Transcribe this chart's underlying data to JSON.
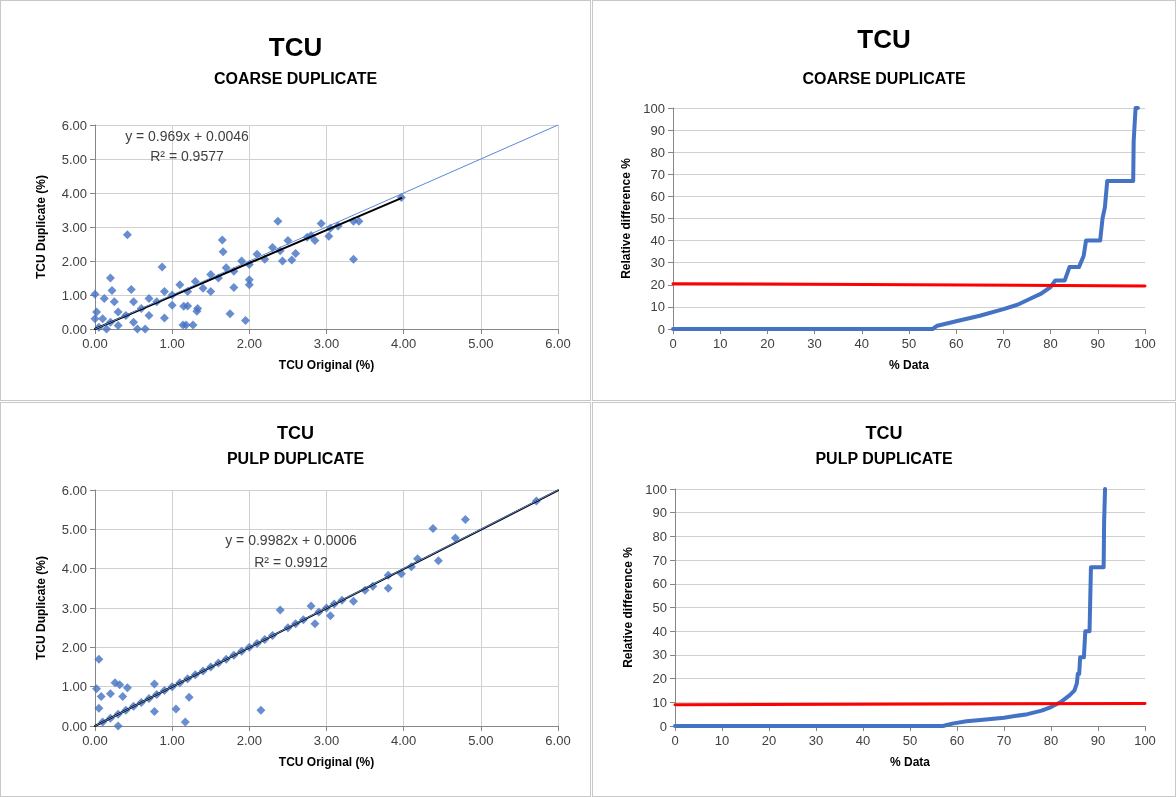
{
  "chart_data": [
    {
      "type": "scatter",
      "title": "TCU",
      "subtitle": "COARSE DUPLICATE",
      "xlabel": "TCU Original (%)",
      "ylabel": "TCU Duplicate (%)",
      "annotations": [
        "y = 0.969x + 0.0046",
        "R² = 0.9577"
      ],
      "xlim": [
        0,
        6
      ],
      "ylim": [
        0,
        6
      ],
      "grid": true,
      "marker": "diamond",
      "xticks": [
        {
          "value": 0,
          "label": "0.00"
        },
        {
          "value": 1,
          "label": "1.00"
        },
        {
          "value": 2,
          "label": "2.00"
        },
        {
          "value": 3,
          "label": "3.00"
        },
        {
          "value": 4,
          "label": "4.00"
        },
        {
          "value": 5,
          "label": "5.00"
        },
        {
          "value": 6,
          "label": "6.00"
        }
      ],
      "yticks": [
        {
          "value": 0,
          "label": "0.00"
        },
        {
          "value": 1,
          "label": "1.00"
        },
        {
          "value": 2,
          "label": "2.00"
        },
        {
          "value": 3,
          "label": "3.00"
        },
        {
          "value": 4,
          "label": "4.00"
        },
        {
          "value": 5,
          "label": "5.00"
        },
        {
          "value": 6,
          "label": "6.00"
        }
      ],
      "series": [
        {
          "type": "scatter",
          "color": "#4472c4",
          "x": [
            0.42,
            0.0,
            0.12,
            0.2,
            0.22,
            0.47,
            0.87,
            0.9,
            1.14,
            1.18,
            1.27,
            1.15,
            1.2,
            1.32,
            1.33,
            1.65,
            1.66,
            1.75,
            1.8,
            1.95,
            2.0,
            2.0,
            2.37,
            2.43,
            2.55,
            2.6,
            2.93,
            3.03,
            3.05,
            3.15,
            3.35,
            3.35,
            3.42,
            3.97,
            2.75,
            2.85,
            2.8,
            2.5,
            0.05,
            0.1,
            0.15,
            0.2,
            0.3,
            0.3,
            0.4,
            0.5,
            0.5,
            0.6,
            0.7,
            0.7,
            0.8,
            0.9,
            1.0,
            1.0,
            1.1,
            1.2,
            1.3,
            1.4,
            1.5,
            1.5,
            1.6,
            1.7,
            1.8,
            1.9,
            2.0,
            2.1,
            2.2,
            2.3,
            2.4,
            0.02,
            0.0,
            0.25,
            0.65,
            0.55
          ],
          "values": [
            2.77,
            1.02,
            0.9,
            1.5,
            1.13,
            1.16,
            1.82,
            0.32,
            0.12,
            0.12,
            0.12,
            0.67,
            0.68,
            0.52,
            0.6,
            2.62,
            2.27,
            0.45,
            1.22,
            0.25,
            1.3,
            1.45,
            3.17,
            2.0,
            2.03,
            2.22,
            3.1,
            2.73,
            2.96,
            3.03,
            2.05,
            3.17,
            3.17,
            3.87,
            2.7,
            2.6,
            2.75,
            2.6,
            0.05,
            0.3,
            0.0,
            0.2,
            0.5,
            0.1,
            0.4,
            0.8,
            0.2,
            0.6,
            0.9,
            0.4,
            0.8,
            1.1,
            1.0,
            0.7,
            1.3,
            1.1,
            1.4,
            1.2,
            1.6,
            1.1,
            1.5,
            1.8,
            1.7,
            2.0,
            1.9,
            2.2,
            2.05,
            2.4,
            2.3,
            0.5,
            0.3,
            0.8,
            0.0,
            0.0
          ]
        },
        {
          "type": "line",
          "color": "#000000",
          "marker": "none",
          "x": [
            0,
            3.97
          ],
          "values": [
            0.0,
            3.85
          ]
        },
        {
          "type": "line",
          "color": "#5b87d6",
          "marker": "none",
          "x": [
            0,
            6
          ],
          "values": [
            0,
            6
          ]
        }
      ]
    },
    {
      "type": "line",
      "title": "TCU",
      "subtitle": "COARSE DUPLICATE",
      "xlabel": "% Data",
      "ylabel": "Relative difference %",
      "xlim": [
        0,
        100
      ],
      "ylim": [
        0,
        100
      ],
      "grid": "y",
      "marker": "none",
      "xticks": [
        0,
        10,
        20,
        30,
        40,
        50,
        60,
        70,
        80,
        90,
        100
      ],
      "yticks": [
        0,
        10,
        20,
        30,
        40,
        50,
        60,
        70,
        80,
        90,
        100
      ],
      "series": [
        {
          "color": "#4472c4",
          "x": [
            0,
            55,
            56,
            60,
            65,
            70,
            73,
            76,
            78,
            80,
            81,
            83,
            84,
            86,
            87,
            87.5,
            90.5,
            91,
            91.5,
            92,
            97.5,
            97.6,
            98,
            98.5
          ],
          "values": [
            0,
            0,
            1.5,
            3.5,
            6,
            9,
            11,
            14,
            16,
            19,
            22,
            22,
            28,
            28,
            33,
            40,
            40,
            50,
            55,
            67,
            67,
            85,
            100,
            100
          ]
        },
        {
          "color": "#ff0000",
          "x": [
            0,
            100
          ],
          "values": [
            20.5,
            19.5
          ]
        }
      ]
    },
    {
      "type": "scatter",
      "title": "TCU",
      "subtitle": "PULP DUPLICATE",
      "xlabel": "TCU Original (%)",
      "ylabel": "TCU Duplicate (%)",
      "annotations": [
        "y = 0.9982x + 0.0006",
        "R² = 0.9912"
      ],
      "xlim": [
        0,
        6
      ],
      "ylim": [
        0,
        6
      ],
      "grid": true,
      "marker": "diamond",
      "xticks": [
        {
          "value": 0,
          "label": "0.00"
        },
        {
          "value": 1,
          "label": "1.00"
        },
        {
          "value": 2,
          "label": "2.00"
        },
        {
          "value": 3,
          "label": "3.00"
        },
        {
          "value": 4,
          "label": "4.00"
        },
        {
          "value": 5,
          "label": "5.00"
        },
        {
          "value": 6,
          "label": "6.00"
        }
      ],
      "yticks": [
        {
          "value": 0,
          "label": "0.00"
        },
        {
          "value": 1,
          "label": "1.00"
        },
        {
          "value": 2,
          "label": "2.00"
        },
        {
          "value": 3,
          "label": "3.00"
        },
        {
          "value": 4,
          "label": "4.00"
        },
        {
          "value": 5,
          "label": "5.00"
        },
        {
          "value": 6,
          "label": "6.00"
        }
      ],
      "series": [
        {
          "type": "scatter",
          "color": "#4472c4",
          "x": [
            0.05,
            0.02,
            0.08,
            0.2,
            0.26,
            0.32,
            0.36,
            0.42,
            0.77,
            0.77,
            1.05,
            1.17,
            1.22,
            2.15,
            2.4,
            2.8,
            2.85,
            3.05,
            3.35,
            3.8,
            3.8,
            3.97,
            4.1,
            4.18,
            4.38,
            4.45,
            4.67,
            4.8,
            5.72,
            0.3,
            0.05,
            0.1,
            0.2,
            0.3,
            0.4,
            0.5,
            0.6,
            0.7,
            0.8,
            0.9,
            1.0,
            1.1,
            1.2,
            1.3,
            1.4,
            1.5,
            1.6,
            1.7,
            1.8,
            1.9,
            2.0,
            2.1,
            2.2,
            2.3,
            2.5,
            2.6,
            2.7,
            2.9,
            3.0,
            3.1,
            3.2,
            3.5,
            3.6
          ],
          "values": [
            1.7,
            0.95,
            0.75,
            0.82,
            1.1,
            1.05,
            0.75,
            0.97,
            1.07,
            0.37,
            0.43,
            0.1,
            0.73,
            0.4,
            2.95,
            3.05,
            2.6,
            2.8,
            3.17,
            3.5,
            3.83,
            3.87,
            4.05,
            4.25,
            5.02,
            4.2,
            4.78,
            5.25,
            5.72,
            0.0,
            0.45,
            0.1,
            0.2,
            0.3,
            0.4,
            0.5,
            0.6,
            0.7,
            0.8,
            0.9,
            1.0,
            1.1,
            1.2,
            1.3,
            1.4,
            1.5,
            1.6,
            1.7,
            1.8,
            1.9,
            2.0,
            2.1,
            2.2,
            2.3,
            2.5,
            2.6,
            2.7,
            2.9,
            3.0,
            3.1,
            3.2,
            3.45,
            3.55
          ]
        },
        {
          "type": "line",
          "color": "#000000",
          "marker": "none",
          "x": [
            0,
            6
          ],
          "values": [
            0.0,
            5.99
          ]
        },
        {
          "type": "line",
          "color": "#5b87d6",
          "marker": "none",
          "x": [
            0,
            6
          ],
          "values": [
            0,
            6
          ]
        }
      ]
    },
    {
      "type": "line",
      "title": "TCU",
      "subtitle": "PULP DUPLICATE",
      "xlabel": "% Data",
      "ylabel": "Relative difference %",
      "xlim": [
        0,
        100
      ],
      "ylim": [
        0,
        100
      ],
      "grid": "y",
      "marker": "none",
      "xticks": [
        0,
        10,
        20,
        30,
        40,
        50,
        60,
        70,
        80,
        90,
        100
      ],
      "yticks": [
        0,
        10,
        20,
        30,
        40,
        50,
        60,
        70,
        80,
        90,
        100
      ],
      "series": [
        {
          "color": "#4472c4",
          "x": [
            0,
            57,
            59,
            62,
            65,
            70,
            75,
            78,
            80,
            82,
            84,
            85,
            85.5,
            85.7,
            86,
            86.2,
            87,
            87.3,
            88.2,
            88.5,
            91.2,
            91.3,
            91.5
          ],
          "values": [
            0,
            0,
            1,
            2,
            2.5,
            3.5,
            5,
            6.5,
            8,
            10,
            13,
            15,
            18,
            22,
            22,
            29,
            29,
            40,
            40,
            67,
            67,
            86,
            100
          ]
        },
        {
          "color": "#ff0000",
          "x": [
            0,
            100
          ],
          "values": [
            9,
            9.5
          ]
        }
      ]
    }
  ]
}
